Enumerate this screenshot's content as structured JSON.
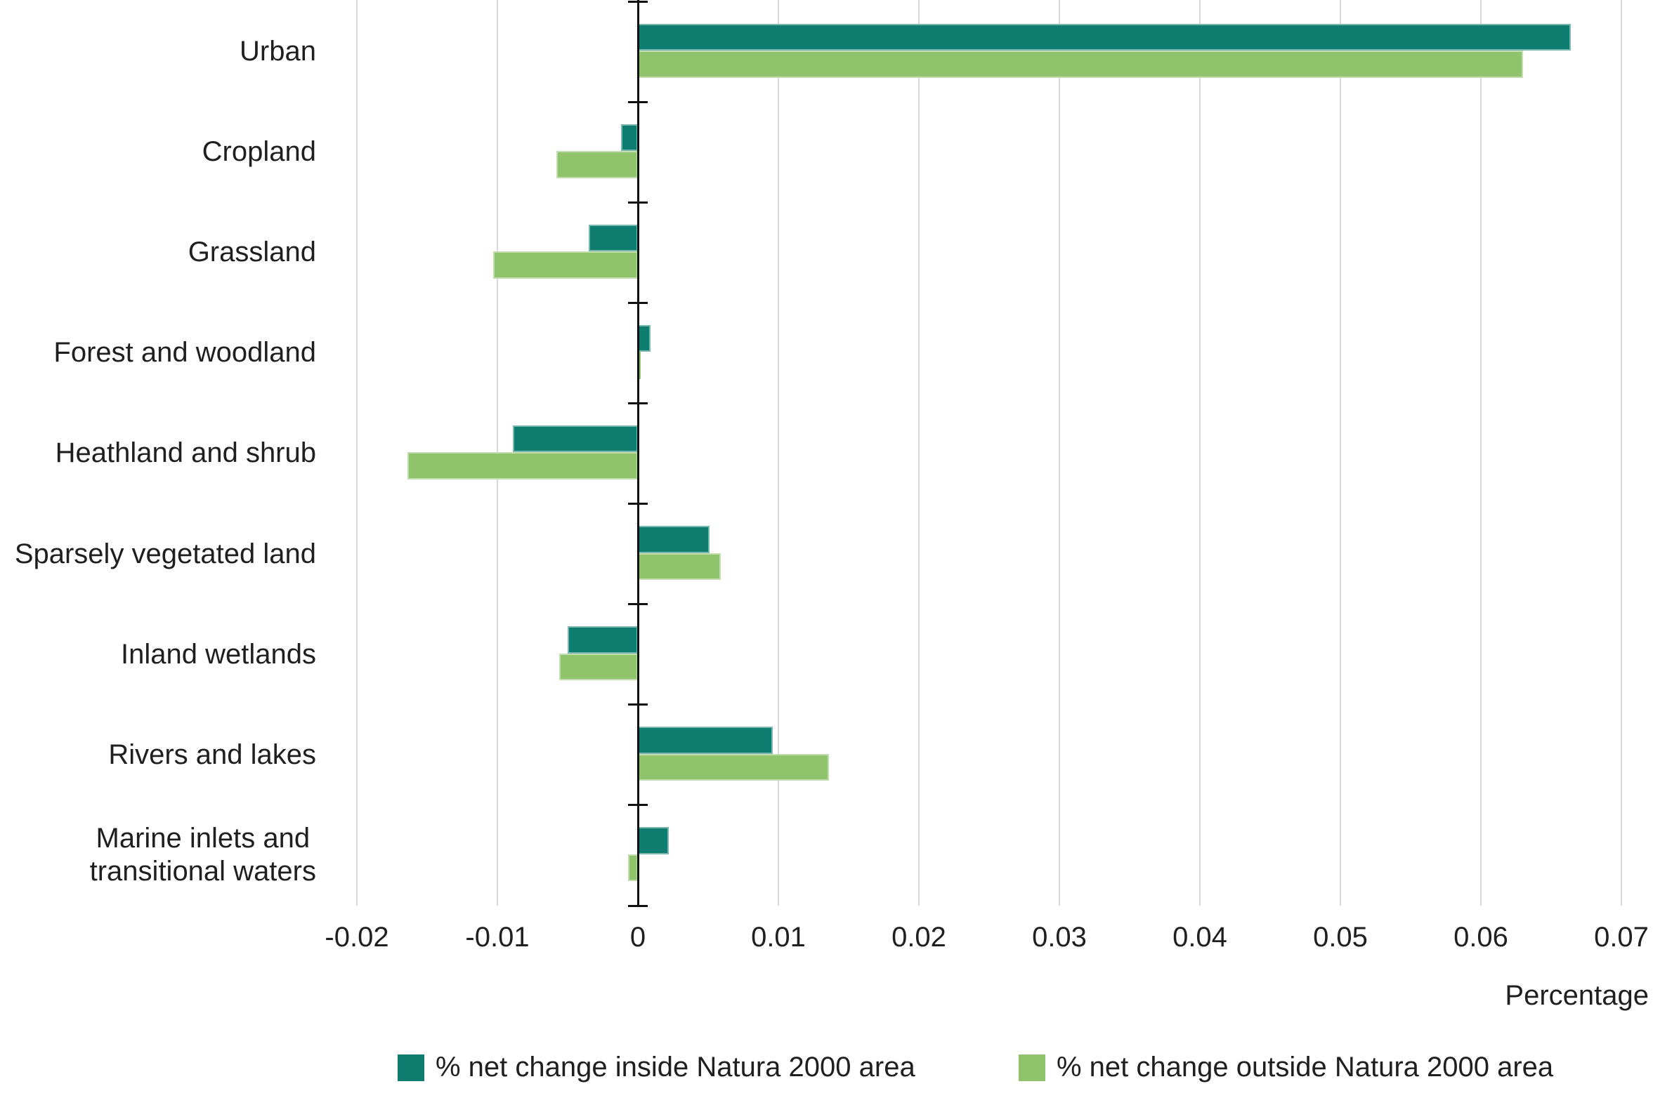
{
  "chart_data": {
    "type": "bar",
    "orientation": "horizontal",
    "title": "",
    "xlabel": "Percentage",
    "ylabel": "",
    "grid": true,
    "legend_position": "bottom",
    "xlim": [
      -0.025,
      0.0725
    ],
    "x_ticks": [
      -0.02,
      -0.01,
      0,
      0.01,
      0.02,
      0.03,
      0.04,
      0.05,
      0.06,
      0.07
    ],
    "x_tick_labels": [
      "-0.02",
      "-0.01",
      "0",
      "0.01",
      "0.02",
      "0.03",
      "0.04",
      "0.05",
      "0.06",
      "0.07"
    ],
    "categories": [
      "Urban",
      "Cropland",
      "Grassland",
      "Forest and woodland",
      "Heathland and shrub",
      "Sparsely vegetated land",
      "Inland wetlands",
      "Rivers and lakes",
      "Marine inlets and\ntransitional waters"
    ],
    "series": [
      {
        "name": "% net change inside Natura 2000 area",
        "color": "#0E7C6F",
        "values": [
          0.0664,
          -0.0012,
          -0.0035,
          0.0009,
          -0.0089,
          0.0051,
          -0.005,
          0.0096,
          0.0022
        ]
      },
      {
        "name": "% net change outside Natura 2000 area",
        "color": "#90C46C",
        "values": [
          0.063,
          -0.0058,
          -0.0103,
          0.0002,
          -0.0164,
          0.0059,
          -0.0056,
          0.0136,
          -0.0007
        ]
      }
    ]
  },
  "colors": {
    "axis": "#111111",
    "gridline": "#d9d9d9",
    "text": "#1f1f1f",
    "background": "#ffffff",
    "bar_stroke": "rgba(255,255,255,0.45)"
  }
}
